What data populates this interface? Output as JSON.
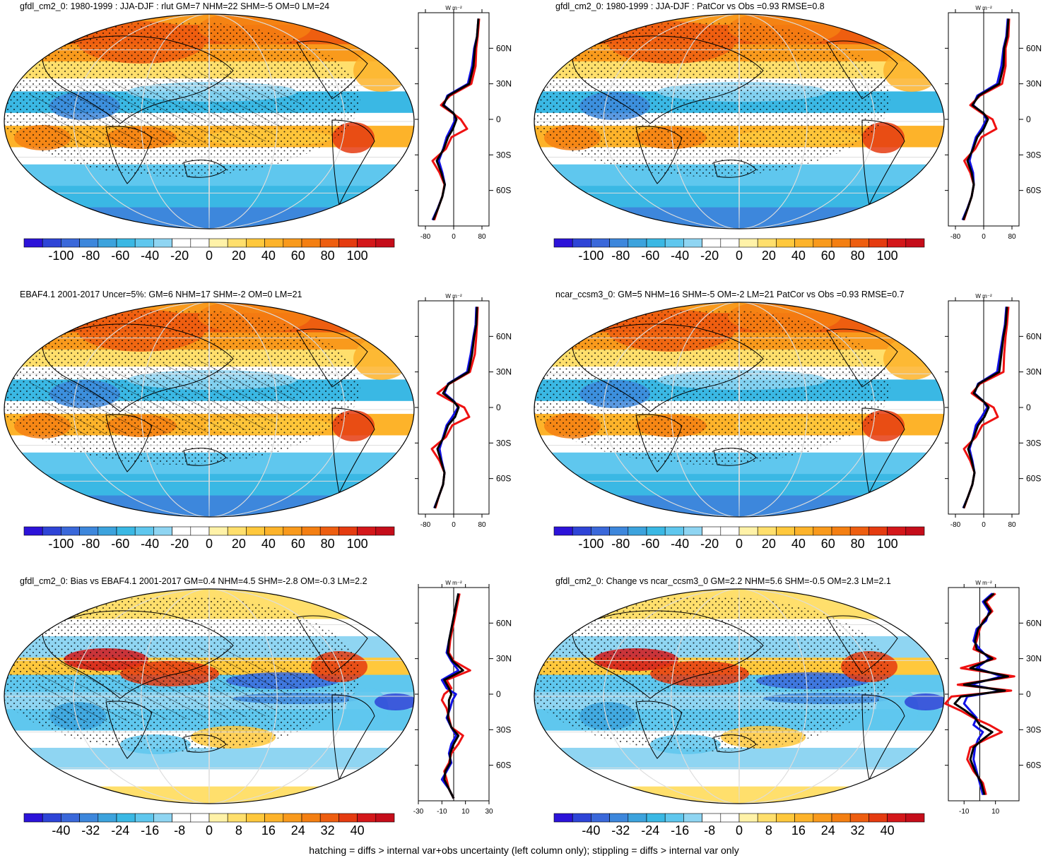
{
  "colors": {
    "palette": [
      "#2c13d9",
      "#2e44d7",
      "#3a68da",
      "#3d87dc",
      "#3ca3dd",
      "#3ab8e4",
      "#5fc7ee",
      "#8fd5f2",
      "#ffffff",
      "#ffffff",
      "#fff2a8",
      "#ffdf6c",
      "#ffc83c",
      "#fdb32a",
      "#f99a1c",
      "#f47f12",
      "#ee5e10",
      "#e53b10",
      "#d4171a",
      "#c50d1a"
    ],
    "blue_line": "#1010e6",
    "red_line": "#ee1111",
    "black_line": "#000000"
  },
  "units_label": "W m⁻²",
  "lat_labels": [
    "60N",
    "30N",
    "0",
    "30S",
    "60S"
  ],
  "panels": [
    {
      "title": "gfdl_cm2_0: 1980-1999 : JJA-DJF : rlut GM=7 NHM=22 SHM=-5 OM=0 LM=24",
      "cbar_labels": [
        "-100",
        "-80",
        "-60",
        "-40",
        "-20",
        "0",
        "20",
        "40",
        "60",
        "80",
        "100"
      ],
      "profile_ticks": [
        "-80",
        "0",
        "80"
      ],
      "hatching": true,
      "chart_data": {
        "type": "line",
        "xlim": [
          -100,
          100
        ],
        "ylim": [
          -90,
          90
        ],
        "lat": [
          85,
          70,
          60,
          45,
          30,
          20,
          12,
          5,
          0,
          -8,
          -15,
          -25,
          -35,
          -45,
          -55,
          -65,
          -75,
          -85
        ],
        "series": [
          {
            "color": "blue",
            "values": [
              70,
              66,
              58,
              52,
              40,
              -18,
              -28,
              0,
              5,
              -8,
              -20,
              -30,
              -42,
              -32,
              -25,
              -32,
              -45,
              -60
            ]
          },
          {
            "color": "red",
            "values": [
              72,
              68,
              64,
              62,
              50,
              -10,
              -36,
              -2,
              20,
              38,
              -6,
              -22,
              -60,
              -40,
              -26,
              -32,
              -44,
              -55
            ]
          },
          {
            "color": "black",
            "values": [
              70,
              66,
              60,
              56,
              44,
              -15,
              -30,
              0,
              8,
              -2,
              -16,
              -28,
              -48,
              -35,
              -25,
              -32,
              -44,
              -58
            ]
          }
        ]
      }
    },
    {
      "title": "gfdl_cm2_0: 1980-1999 : JJA-DJF : PatCor vs Obs =0.93 RMSE=0.8",
      "cbar_labels": [
        "-100",
        "-80",
        "-60",
        "-40",
        "-20",
        "0",
        "20",
        "40",
        "60",
        "80",
        "100"
      ],
      "profile_ticks": [
        "-80",
        "0",
        "80"
      ],
      "hatching": false,
      "chart_data": {
        "type": "line",
        "xlim": [
          -100,
          100
        ],
        "ylim": [
          -90,
          90
        ],
        "lat": [
          85,
          70,
          60,
          45,
          30,
          20,
          12,
          5,
          0,
          -8,
          -15,
          -25,
          -35,
          -45,
          -55,
          -65,
          -75,
          -85
        ],
        "series": [
          {
            "color": "blue",
            "values": [
              68,
              64,
              56,
              50,
              38,
              -18,
              -30,
              -2,
              8,
              -6,
              -22,
              -32,
              -40,
              -30,
              -28,
              -34,
              -46,
              -60
            ]
          },
          {
            "color": "red",
            "values": [
              72,
              70,
              62,
              62,
              52,
              -10,
              -38,
              -4,
              25,
              36,
              -6,
              -24,
              -55,
              -38,
              -28,
              -34,
              -45,
              -56
            ]
          },
          {
            "color": "black",
            "values": [
              70,
              66,
              58,
              56,
              44,
              -14,
              -32,
              0,
              12,
              0,
              -18,
              -30,
              -46,
              -34,
              -28,
              -34,
              -45,
              -58
            ]
          }
        ]
      }
    },
    {
      "title": "EBAF4.1 2001-2017 Uncer=5%: GM=6 NHM=17 SHM=-2 OM=0 LM=21",
      "cbar_labels": [
        "-100",
        "-80",
        "-60",
        "-40",
        "-20",
        "0",
        "20",
        "40",
        "60",
        "80",
        "100"
      ],
      "profile_ticks": [
        "-80",
        "0",
        "80"
      ],
      "hatching": true,
      "chart_data": {
        "type": "line",
        "xlim": [
          -100,
          100
        ],
        "ylim": [
          -90,
          90
        ],
        "lat": [
          85,
          70,
          60,
          45,
          30,
          20,
          12,
          5,
          0,
          -8,
          -15,
          -25,
          -35,
          -45,
          -55,
          -65,
          -75,
          -85
        ],
        "series": [
          {
            "color": "blue",
            "values": [
              64,
              62,
              56,
              48,
              38,
              -16,
              -26,
              2,
              12,
              -4,
              -20,
              -30,
              -40,
              -34,
              -26,
              -30,
              -42,
              -55
            ]
          },
          {
            "color": "red",
            "values": [
              68,
              66,
              64,
              60,
              46,
              -12,
              -46,
              -4,
              30,
              44,
              -4,
              -22,
              -62,
              -40,
              -26,
              -30,
              -42,
              -52
            ]
          },
          {
            "color": "black",
            "values": [
              66,
              64,
              58,
              52,
              42,
              -14,
              -30,
              0,
              14,
              4,
              -16,
              -28,
              -46,
              -36,
              -26,
              -30,
              -42,
              -54
            ]
          }
        ]
      }
    },
    {
      "title": "ncar_ccsm3_0: GM=5 NHM=16 SHM=-5 OM=-2 LM=21 PatCor vs Obs =0.93 RMSE=0.7",
      "cbar_labels": [
        "-100",
        "-80",
        "-60",
        "-40",
        "-20",
        "0",
        "20",
        "40",
        "60",
        "80",
        "100"
      ],
      "profile_ticks": [
        "-80",
        "0",
        "80"
      ],
      "hatching": false,
      "chart_data": {
        "type": "line",
        "xlim": [
          -100,
          100
        ],
        "ylim": [
          -90,
          90
        ],
        "lat": [
          85,
          70,
          60,
          45,
          30,
          20,
          12,
          5,
          0,
          -8,
          -15,
          -25,
          -35,
          -45,
          -55,
          -65,
          -75,
          -85
        ],
        "series": [
          {
            "color": "blue",
            "values": [
              64,
              60,
              54,
              46,
              38,
              -16,
              -26,
              0,
              10,
              -6,
              -22,
              -30,
              -40,
              -32,
              -26,
              -32,
              -44,
              -58
            ]
          },
          {
            "color": "red",
            "values": [
              70,
              66,
              62,
              58,
              56,
              -10,
              -34,
              -2,
              28,
              40,
              -4,
              -22,
              -56,
              -38,
              -26,
              -32,
              -44,
              -56
            ]
          },
          {
            "color": "black",
            "values": [
              66,
              62,
              56,
              50,
              44,
              -14,
              -28,
              0,
              14,
              2,
              -16,
              -28,
              -44,
              -34,
              -26,
              -32,
              -44,
              -57
            ]
          }
        ]
      }
    },
    {
      "title": "gfdl_cm2_0: Bias vs EBAF4.1 2001-2017 GM=0.4 NHM=4.5 SHM=-2.8 OM=-0.3 LM=2.2",
      "cbar_labels": [
        "-40",
        "-32",
        "-24",
        "-16",
        "-8",
        "0",
        "8",
        "16",
        "24",
        "32",
        "40"
      ],
      "profile_ticks": [
        "-30",
        "-10",
        "10",
        "30"
      ],
      "hatching": true,
      "chart_data": {
        "type": "line",
        "xlim": [
          -30,
          30
        ],
        "ylim": [
          -90,
          90
        ],
        "lat": [
          85,
          75,
          65,
          55,
          45,
          35,
          28,
          20,
          12,
          5,
          0,
          -5,
          -12,
          -20,
          -28,
          -35,
          -42,
          -50,
          -58,
          -65,
          -72,
          -80,
          -88
        ],
        "series": [
          {
            "color": "blue",
            "values": [
              4,
              2,
              0,
              -2,
              -4,
              -6,
              -2,
              4,
              -10,
              -6,
              2,
              -1,
              -3,
              -6,
              -2,
              2,
              -2,
              -4,
              -2,
              -6,
              -10,
              -4,
              0
            ]
          },
          {
            "color": "red",
            "values": [
              5,
              3,
              1,
              -1,
              -3,
              -4,
              0,
              14,
              -6,
              -2,
              -8,
              -10,
              -6,
              -4,
              -2,
              8,
              4,
              -2,
              -4,
              -8,
              -6,
              -4,
              0
            ]
          },
          {
            "color": "black",
            "values": [
              4,
              2,
              0,
              -2,
              -4,
              -5,
              -1,
              8,
              -8,
              -4,
              -2,
              -4,
              -4,
              -5,
              -2,
              4,
              0,
              -3,
              -3,
              -7,
              -8,
              -4,
              0
            ]
          }
        ]
      }
    },
    {
      "title": "gfdl_cm2_0: Change vs ncar_ccsm3_0 GM=2.2 NHM=5.6 SHM=-0.5 OM=2.3 LM=2.1",
      "cbar_labels": [
        "-40",
        "-32",
        "-24",
        "-16",
        "-8",
        "0",
        "8",
        "16",
        "24",
        "32",
        "40"
      ],
      "profile_ticks": [
        "-10",
        "10"
      ],
      "hatching": false,
      "chart_data": {
        "type": "line",
        "xlim": [
          -20,
          25
        ],
        "ylim": [
          -90,
          90
        ],
        "lat": [
          85,
          78,
          70,
          62,
          55,
          45,
          38,
          30,
          22,
          15,
          8,
          3,
          -2,
          -8,
          -14,
          -20,
          -26,
          -32,
          -38,
          -45,
          -55,
          -65,
          -75,
          -85
        ],
        "series": [
          {
            "color": "blue",
            "values": [
              8,
              2,
              6,
              4,
              -2,
              -4,
              0,
              6,
              -2,
              14,
              -6,
              14,
              -8,
              -10,
              -6,
              -2,
              -4,
              2,
              -1,
              -3,
              -4,
              -2,
              0,
              2
            ]
          },
          {
            "color": "red",
            "values": [
              10,
              4,
              8,
              2,
              0,
              -2,
              -4,
              10,
              -12,
              22,
              -14,
              20,
              -18,
              -22,
              -12,
              -4,
              6,
              14,
              4,
              -6,
              -8,
              -4,
              2,
              4
            ]
          },
          {
            "color": "black",
            "values": [
              9,
              3,
              7,
              3,
              -1,
              -3,
              -2,
              8,
              -6,
              18,
              -10,
              16,
              -12,
              -16,
              -9,
              -3,
              0,
              8,
              2,
              -4,
              -6,
              -3,
              1,
              3
            ]
          }
        ]
      }
    }
  ],
  "footer": "hatching = diffs > internal var+obs uncertainty (left column only); stippling = diffs > internal var only"
}
